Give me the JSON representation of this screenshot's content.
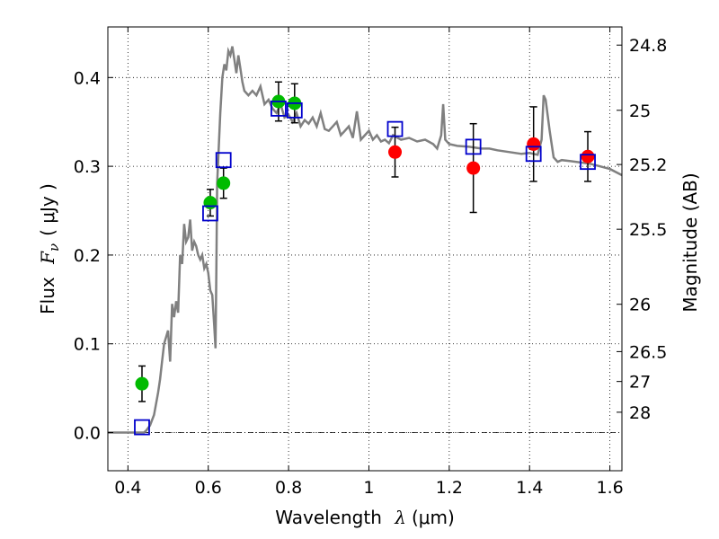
{
  "chart_data": {
    "type": "scatter",
    "xlabel_text": "Wavelength",
    "xlabel_symbol": "λ",
    "xlabel_unit": "(μm)",
    "ylabel_text": "Flux",
    "ylabel_symbol": "F",
    "ylabel_subscript": "ν",
    "ylabel_unit": "( μJy )",
    "y2label": "Magnitude (AB)",
    "xlim": [
      0.35,
      1.63
    ],
    "ylim": [
      -0.043,
      0.457
    ],
    "grid": true,
    "x_ticks": [
      0.4,
      0.6,
      0.8,
      1.0,
      1.2,
      1.4,
      1.6
    ],
    "x_tick_labels": [
      "0.4",
      "0.6",
      "0.8",
      "1",
      "1.2",
      "1.4",
      "1.6"
    ],
    "y_ticks": [
      0.0,
      0.1,
      0.2,
      0.3,
      0.4
    ],
    "y_tick_labels": [
      "0.0",
      "0.1",
      "0.2",
      "0.3",
      "0.4"
    ],
    "mag_ticks": [
      24.8,
      25,
      25.2,
      25.5,
      26,
      26.5,
      27,
      28
    ],
    "mag_tick_labels": [
      "24.8",
      "25",
      "25.2",
      "25.5",
      "26",
      "26.5",
      "27",
      "28"
    ],
    "template_color": "#808080",
    "template_spectrum": {
      "x": [
        0.35,
        0.44,
        0.445,
        0.455,
        0.465,
        0.475,
        0.48,
        0.485,
        0.49,
        0.5,
        0.505,
        0.51,
        0.515,
        0.52,
        0.525,
        0.53,
        0.535,
        0.54,
        0.545,
        0.55,
        0.555,
        0.56,
        0.565,
        0.57,
        0.575,
        0.58,
        0.585,
        0.59,
        0.595,
        0.6,
        0.605,
        0.61,
        0.615,
        0.618,
        0.62,
        0.622,
        0.625,
        0.63,
        0.635,
        0.64,
        0.645,
        0.65,
        0.655,
        0.66,
        0.665,
        0.67,
        0.675,
        0.68,
        0.685,
        0.69,
        0.7,
        0.71,
        0.72,
        0.73,
        0.74,
        0.75,
        0.76,
        0.77,
        0.78,
        0.79,
        0.8,
        0.81,
        0.82,
        0.83,
        0.84,
        0.85,
        0.86,
        0.87,
        0.88,
        0.89,
        0.9,
        0.91,
        0.92,
        0.93,
        0.94,
        0.95,
        0.96,
        0.97,
        0.98,
        0.99,
        1.0,
        1.01,
        1.02,
        1.03,
        1.04,
        1.05,
        1.06,
        1.08,
        1.1,
        1.12,
        1.14,
        1.16,
        1.17,
        1.18,
        1.185,
        1.19,
        1.2,
        1.22,
        1.25,
        1.28,
        1.3,
        1.32,
        1.35,
        1.38,
        1.4,
        1.42,
        1.43,
        1.435,
        1.44,
        1.45,
        1.46,
        1.47,
        1.48,
        1.5,
        1.55,
        1.6,
        1.63
      ],
      "y": [
        0.0,
        0.0,
        0.002,
        0.008,
        0.02,
        0.045,
        0.06,
        0.08,
        0.1,
        0.115,
        0.08,
        0.145,
        0.13,
        0.148,
        0.135,
        0.2,
        0.19,
        0.235,
        0.215,
        0.22,
        0.24,
        0.205,
        0.215,
        0.21,
        0.2,
        0.195,
        0.2,
        0.185,
        0.19,
        0.18,
        0.16,
        0.155,
        0.12,
        0.095,
        0.18,
        0.28,
        0.31,
        0.36,
        0.4,
        0.415,
        0.408,
        0.43,
        0.425,
        0.435,
        0.42,
        0.405,
        0.425,
        0.41,
        0.395,
        0.385,
        0.38,
        0.385,
        0.38,
        0.39,
        0.37,
        0.375,
        0.365,
        0.36,
        0.37,
        0.355,
        0.358,
        0.35,
        0.36,
        0.345,
        0.352,
        0.348,
        0.355,
        0.345,
        0.36,
        0.342,
        0.34,
        0.345,
        0.35,
        0.335,
        0.34,
        0.345,
        0.332,
        0.362,
        0.33,
        0.335,
        0.34,
        0.33,
        0.335,
        0.328,
        0.33,
        0.326,
        0.335,
        0.33,
        0.332,
        0.328,
        0.33,
        0.325,
        0.32,
        0.335,
        0.37,
        0.33,
        0.325,
        0.323,
        0.322,
        0.32,
        0.32,
        0.318,
        0.316,
        0.314,
        0.315,
        0.313,
        0.33,
        0.38,
        0.375,
        0.34,
        0.31,
        0.305,
        0.307,
        0.306,
        0.303,
        0.297,
        0.29
      ]
    },
    "series": [
      {
        "name": "green points",
        "color": "#00bb00",
        "x": [
          0.435,
          0.605,
          0.638,
          0.775,
          0.815
        ],
        "y": [
          0.055,
          0.259,
          0.281,
          0.373,
          0.371
        ],
        "yerr": [
          0.02,
          0.015,
          0.017,
          0.022,
          0.022
        ]
      },
      {
        "name": "red points",
        "color": "#ff0000",
        "x": [
          1.065,
          1.26,
          1.41,
          1.545
        ],
        "y": [
          0.316,
          0.298,
          0.325,
          0.311
        ],
        "yerr": [
          0.028,
          0.05,
          0.042,
          0.028
        ]
      },
      {
        "name": "model squares",
        "color": "#0000cc",
        "x": [
          0.435,
          0.605,
          0.638,
          0.775,
          0.815,
          1.065,
          1.26,
          1.41,
          1.545
        ],
        "y": [
          0.006,
          0.247,
          0.307,
          0.365,
          0.363,
          0.342,
          0.322,
          0.314,
          0.305
        ]
      }
    ]
  }
}
